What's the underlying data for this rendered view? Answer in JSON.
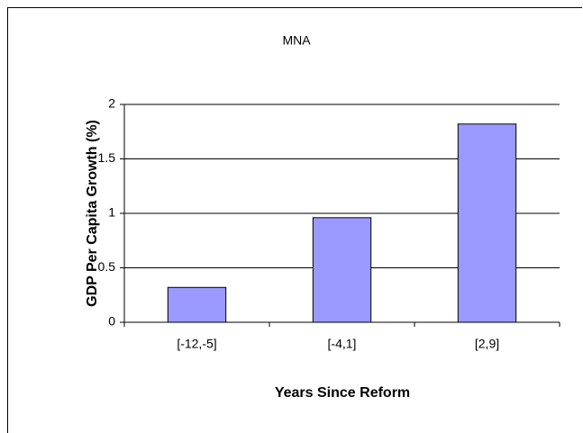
{
  "chart_data": {
    "type": "bar",
    "title": "MNA",
    "x_label": "Years Since Reform",
    "y_label": "GDP Per Capita Growth (%)",
    "categories": [
      "[-12,-5]",
      "[-4,1]",
      "[2,9]"
    ],
    "values": [
      0.32,
      0.96,
      1.82
    ],
    "color": "#9999ff",
    "ylim": [
      0,
      2
    ],
    "yticks": [
      0,
      0.5,
      1,
      1.5,
      2
    ],
    "grid": true
  }
}
